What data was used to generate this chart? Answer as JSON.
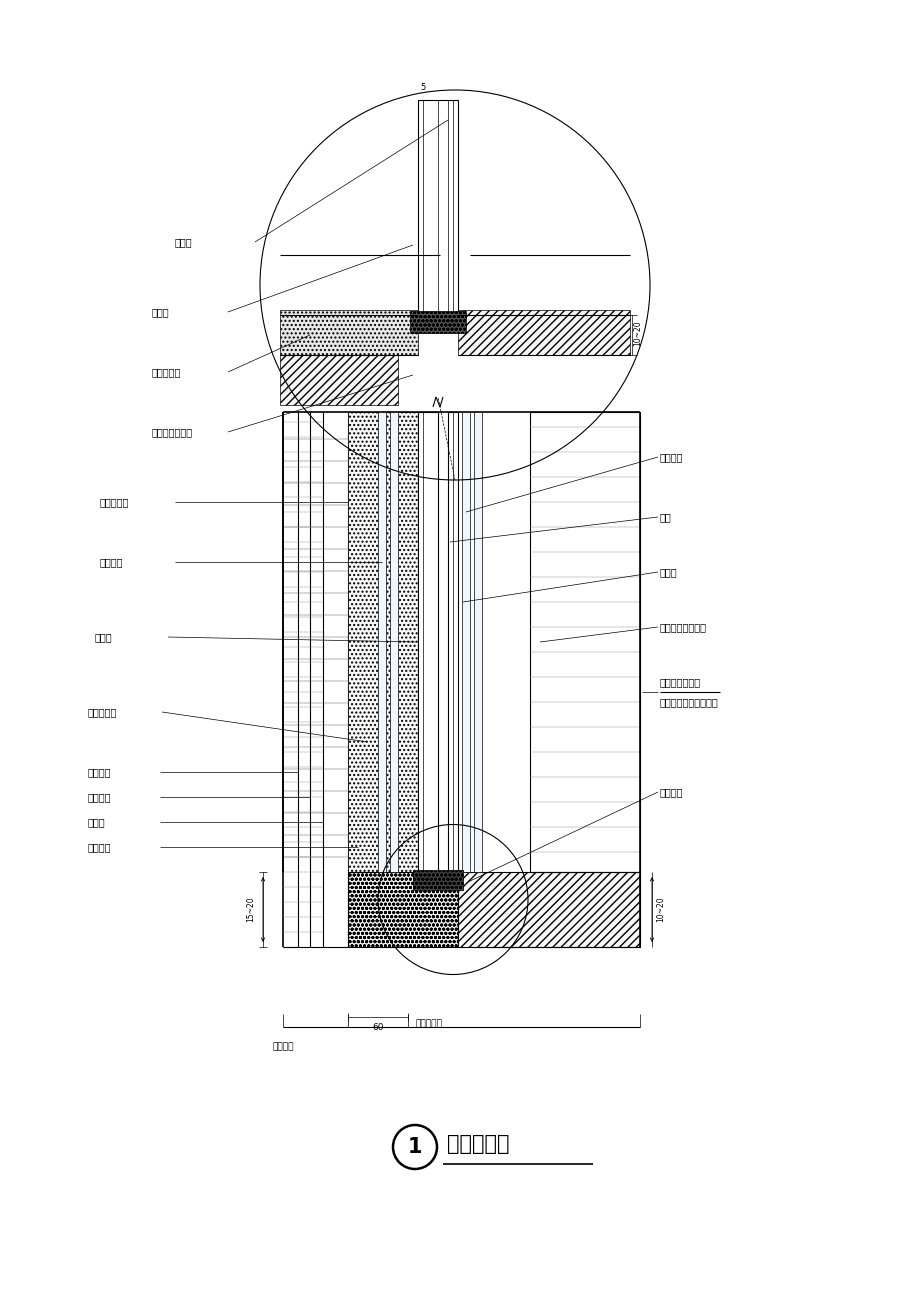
{
  "bg_color": "#ffffff",
  "line_color": "#000000",
  "title": "窗底部剖面",
  "title_number": "1",
  "labels": {
    "lu_chuang_kuang": "铝窗框",
    "gui_tong_jiao_upper": "硅酮胶",
    "hun_ning_tu_upper": "混凝土填实",
    "fa_pao_jiao_upper": "发泡胶（切平）",
    "chuang_ce_bian": "窗侧边瓷砖",
    "zhong_kong_left": "中空玻璃",
    "gui_tong_jiao_lower": "硅酮胶",
    "hun_ning_tu_lower": "混凝土填实",
    "wai_qiang_ci_zhuan": "外墙瓷砖",
    "wai_qiang_mo_hui": "外墙抹灰",
    "bao_wen_ceng": "保温层",
    "zhu_ti_jie_gou": "主体结构",
    "jie_gou_qiang_hou": "结构墙厚度",
    "wai_qiang_zuo_fa": "外墙做法",
    "zhong_kong_right": "中空玻璃",
    "chuang_kuang": "窗框",
    "fa_pao_jiao_right": "发泡胶",
    "shi_nei_chuang_tai": "室内窗台面层做法",
    "chuang_dong_kou": "窗洞口收口位置",
    "jie_gou_liu_dong": "（结构留洞尺寸边界）",
    "peng_zhang_luo_shuan": "膨胀螺栓",
    "dim_60": "60",
    "dim_5": "5",
    "dim_15_20": "15~20",
    "dim_10_20_r": "10~20",
    "dim_10_20_up": "10~20"
  }
}
